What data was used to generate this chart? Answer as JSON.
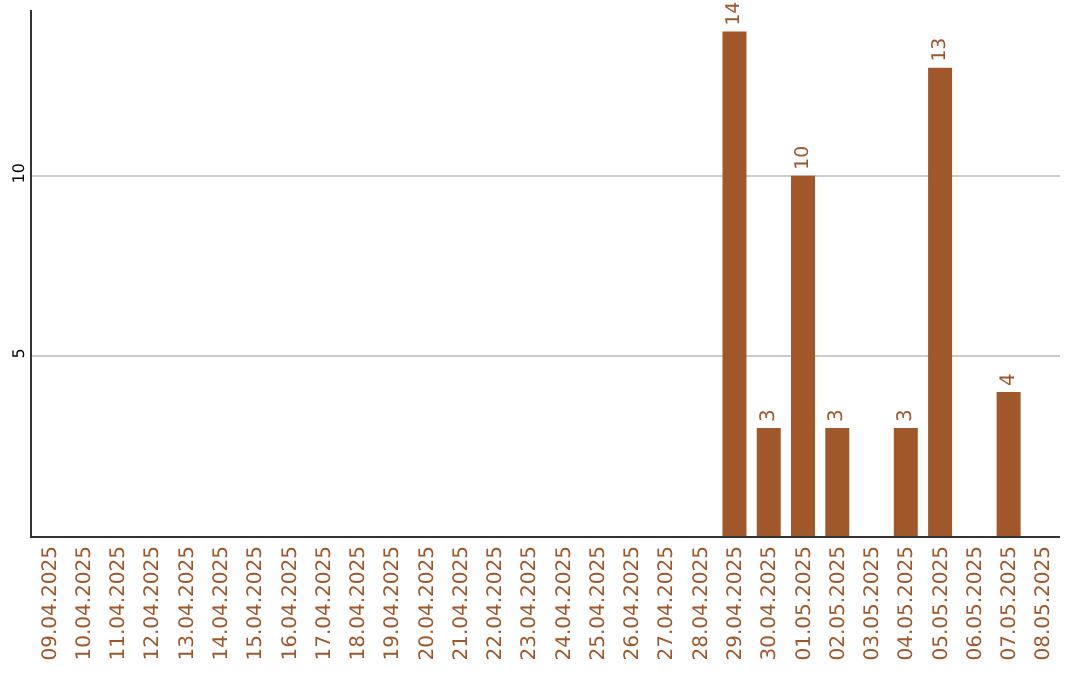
{
  "chart_data": {
    "type": "bar",
    "categories": [
      "09.04.2025",
      "10.04.2025",
      "11.04.2025",
      "12.04.2025",
      "13.04.2025",
      "14.04.2025",
      "15.04.2025",
      "16.04.2025",
      "17.04.2025",
      "18.04.2025",
      "19.04.2025",
      "20.04.2025",
      "21.04.2025",
      "22.04.2025",
      "23.04.2025",
      "24.04.2025",
      "25.04.2025",
      "26.04.2025",
      "27.04.2025",
      "28.04.2025",
      "29.04.2025",
      "30.04.2025",
      "01.05.2025",
      "02.05.2025",
      "03.05.2025",
      "04.05.2025",
      "05.05.2025",
      "06.05.2025",
      "07.05.2025",
      "08.05.2025"
    ],
    "values": [
      0,
      0,
      0,
      0,
      0,
      0,
      0,
      0,
      0,
      0,
      0,
      0,
      0,
      0,
      0,
      0,
      0,
      0,
      0,
      0,
      14,
      3,
      10,
      3,
      0,
      3,
      13,
      0,
      4,
      0
    ],
    "value_labels": [
      null,
      null,
      null,
      null,
      null,
      null,
      null,
      null,
      null,
      null,
      null,
      null,
      null,
      null,
      null,
      null,
      null,
      null,
      null,
      null,
      "14",
      "3",
      "10",
      "3",
      null,
      "3",
      "13",
      null,
      "4",
      null
    ],
    "color": "#a0582a",
    "ylim": [
      0,
      14.6
    ],
    "yticks": [
      5,
      10
    ],
    "grid": "y",
    "legend": false
  }
}
